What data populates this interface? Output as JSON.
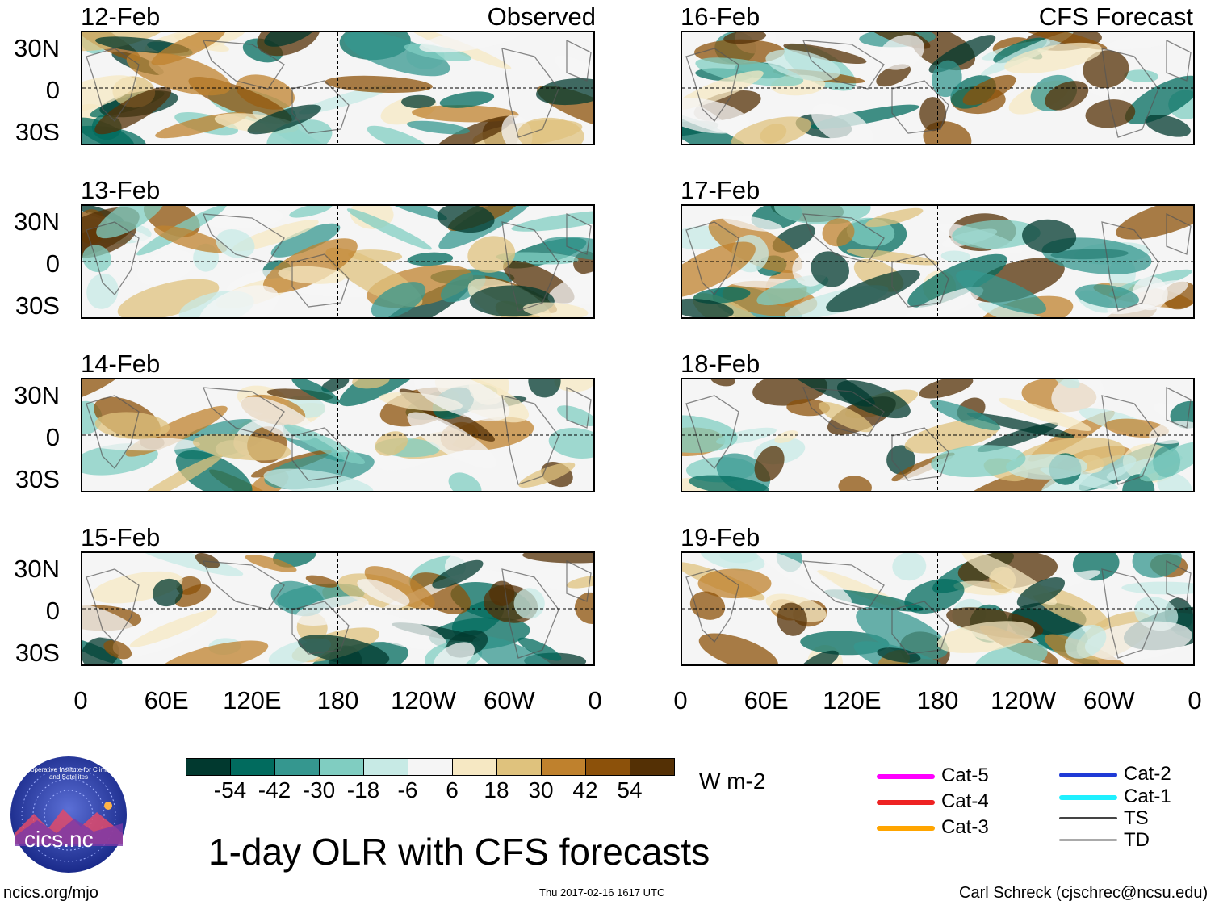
{
  "title": "1-day OLR with CFS forecasts",
  "units": "W m-2",
  "columns": {
    "left_header": "Observed",
    "right_header": "CFS Forecast"
  },
  "panels": [
    {
      "date": "12-Feb",
      "type": "observed"
    },
    {
      "date": "13-Feb",
      "type": "observed"
    },
    {
      "date": "14-Feb",
      "type": "observed"
    },
    {
      "date": "15-Feb",
      "type": "observed"
    },
    {
      "date": "16-Feb",
      "type": "forecast"
    },
    {
      "date": "17-Feb",
      "type": "forecast"
    },
    {
      "date": "18-Feb",
      "type": "forecast"
    },
    {
      "date": "19-Feb",
      "type": "forecast"
    }
  ],
  "lat_ticks": [
    "30N",
    "0",
    "30S"
  ],
  "lon_ticks": [
    "0",
    "60E",
    "120E",
    "180",
    "120W",
    "60W",
    "0"
  ],
  "colorbar": {
    "colors": [
      "#01392f",
      "#016b5e",
      "#35978f",
      "#80cdc1",
      "#c7eae5",
      "#f5f5f5",
      "#f6e8c3",
      "#dfc27d",
      "#bf812d",
      "#8c510a",
      "#543005"
    ],
    "ticks": [
      "-54",
      "-42",
      "-30",
      "-18",
      "-6",
      "6",
      "18",
      "30",
      "42",
      "54"
    ]
  },
  "storm_legend": [
    {
      "label": "Cat-5",
      "color": "#ff00ff"
    },
    {
      "label": "Cat-4",
      "color": "#ee2222"
    },
    {
      "label": "Cat-3",
      "color": "#ffa500"
    },
    {
      "label": "Cat-2",
      "color": "#1f3ad6"
    },
    {
      "label": "Cat-1",
      "color": "#1ff0ff"
    },
    {
      "label": "TS",
      "color": "#444444"
    },
    {
      "label": "TD",
      "color": "#aaaaaa"
    }
  ],
  "logo": {
    "text": "cics.nc",
    "ring_text": "Cooperative Institute for Climate and Satellites"
  },
  "footer": {
    "left": "ncics.org/mjo",
    "center": "Thu 2017-02-16 1617 UTC",
    "right": "Carl Schreck (cjschrec@ncsu.edu)"
  }
}
